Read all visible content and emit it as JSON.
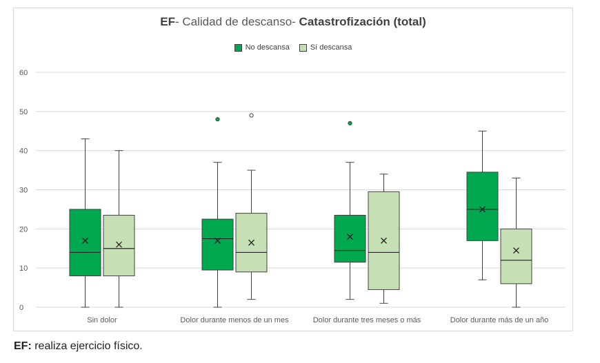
{
  "chart_data": {
    "type": "boxplot",
    "title_bold": "EF",
    "title_plain": "- Calidad de descanso- ",
    "title_bold2": "Catastrofización (total)",
    "ylim": [
      0,
      60
    ],
    "yticks": [
      "0",
      "10",
      "20",
      "30",
      "40",
      "50",
      "60"
    ],
    "grid": true,
    "legend_position": "top",
    "categories": [
      "Sin dolor",
      "Dolor durante menos de un mes",
      "Dolor durante tres meses o más",
      "Dolor durante más de un año"
    ],
    "series": [
      {
        "name": "No descansa",
        "color": "#00a84f",
        "boxes": [
          {
            "min": 0,
            "q1": 8,
            "median": 14,
            "q3": 25,
            "max": 43,
            "mean": 17,
            "outliers": []
          },
          {
            "min": 0,
            "q1": 9.5,
            "median": 17.5,
            "q3": 22.5,
            "max": 37,
            "mean": 17,
            "outliers": [
              48
            ]
          },
          {
            "min": 2,
            "q1": 11.5,
            "median": 14.5,
            "q3": 23.5,
            "max": 37,
            "mean": 18,
            "outliers": [
              47
            ]
          },
          {
            "min": 7,
            "q1": 17,
            "median": 25,
            "q3": 34.5,
            "max": 45,
            "mean": 25,
            "outliers": []
          }
        ]
      },
      {
        "name": "Sí descansa",
        "color": "#c5e0b4",
        "boxes": [
          {
            "min": 0,
            "q1": 8,
            "median": 15,
            "q3": 23.5,
            "max": 40,
            "mean": 16,
            "outliers": []
          },
          {
            "min": 2,
            "q1": 9,
            "median": 14,
            "q3": 24,
            "max": 35,
            "mean": 16.5,
            "outliers": [
              49
            ]
          },
          {
            "min": 1,
            "q1": 4.5,
            "median": 14,
            "q3": 29.5,
            "max": 34,
            "mean": 17,
            "outliers": []
          },
          {
            "min": 0,
            "q1": 6,
            "median": 12,
            "q3": 20,
            "max": 33,
            "mean": 14.5,
            "outliers": []
          }
        ]
      }
    ]
  },
  "footnote": {
    "bold": "EF:",
    "text": " realiza ejercicio físico."
  }
}
